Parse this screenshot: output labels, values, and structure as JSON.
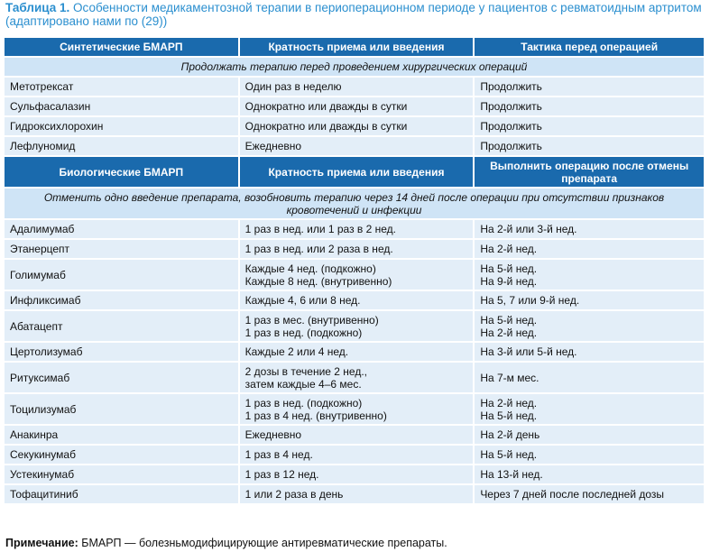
{
  "caption": {
    "label": "Таблица 1.",
    "text": "Особенности медикаментозной терапии в периоперационном периоде у пациентов с ревматоидным артритом (адаптировано нами по (29))"
  },
  "section1": {
    "headers": [
      "Синтетические БМАРП",
      "Кратность приема или введения",
      "Тактика перед операцией"
    ],
    "note": "Продолжать терапию перед проведением хирургических операций",
    "rows": [
      [
        "Метотрексат",
        "Один раз в неделю",
        "Продолжить"
      ],
      [
        "Сульфасалазин",
        "Однократно или дважды в сутки",
        "Продолжить"
      ],
      [
        "Гидроксихлорохин",
        "Однократно или дважды в сутки",
        "Продолжить"
      ],
      [
        "Лефлуномид",
        "Ежедневно",
        "Продолжить"
      ]
    ]
  },
  "section2": {
    "headers": [
      "Биологические БМАРП",
      "Кратность приема или введения",
      "Выполнить операцию после отмены препарата"
    ],
    "note": "Отменить одно введение препарата, возобновить терапию через 14 дней после операции при отсутствии признаков кровотечений и инфекции",
    "rows": [
      [
        "Адалимумаб",
        "1 раз в нед. или 1 раз в 2 нед.",
        "На 2-й или 3-й нед."
      ],
      [
        "Этанерцепт",
        "1 раз в нед. или 2 раза в нед.",
        "На 2-й нед."
      ],
      [
        "Голимумаб",
        "Каждые 4 нед. (подкожно)\nКаждые 8 нед. (внутривенно)",
        "На 5-й нед.\nНа 9-й нед."
      ],
      [
        "Инфликсимаб",
        "Каждые 4, 6 или 8 нед.",
        "На 5, 7 или 9-й нед."
      ],
      [
        "Абатацепт",
        "1 раз в мес. (внутривенно)\n1 раз в нед. (подкожно)",
        "На 5-й нед.\nНа 2-й нед."
      ],
      [
        "Цертолизумаб",
        "Каждые 2 или 4 нед.",
        "На 3-й или 5-й нед."
      ],
      [
        "Ритуксимаб",
        "2 дозы в течение 2 нед.,\nзатем каждые 4–6 мес.",
        "На 7-м мес."
      ],
      [
        "Тоцилизумаб",
        "1 раз в нед. (подкожно)\n1 раз в 4 нед. (внутривенно)",
        "На 2-й нед.\nНа 5-й нед."
      ],
      [
        "Анакинра",
        "Ежедневно",
        "На 2-й день"
      ],
      [
        "Секукинумаб",
        "1 раз в 4 нед.",
        "На 5-й нед."
      ],
      [
        "Устекинумаб",
        "1 раз в 12 нед.",
        "На 13-й нед."
      ],
      [
        "Тофацитиниб",
        "1 или 2 раза в день",
        "Через 7 дней после последней дозы"
      ]
    ]
  },
  "footnote": {
    "label": "Примечание:",
    "text": "БМАРП — болезньмодифицирующие антиревматические препараты."
  }
}
